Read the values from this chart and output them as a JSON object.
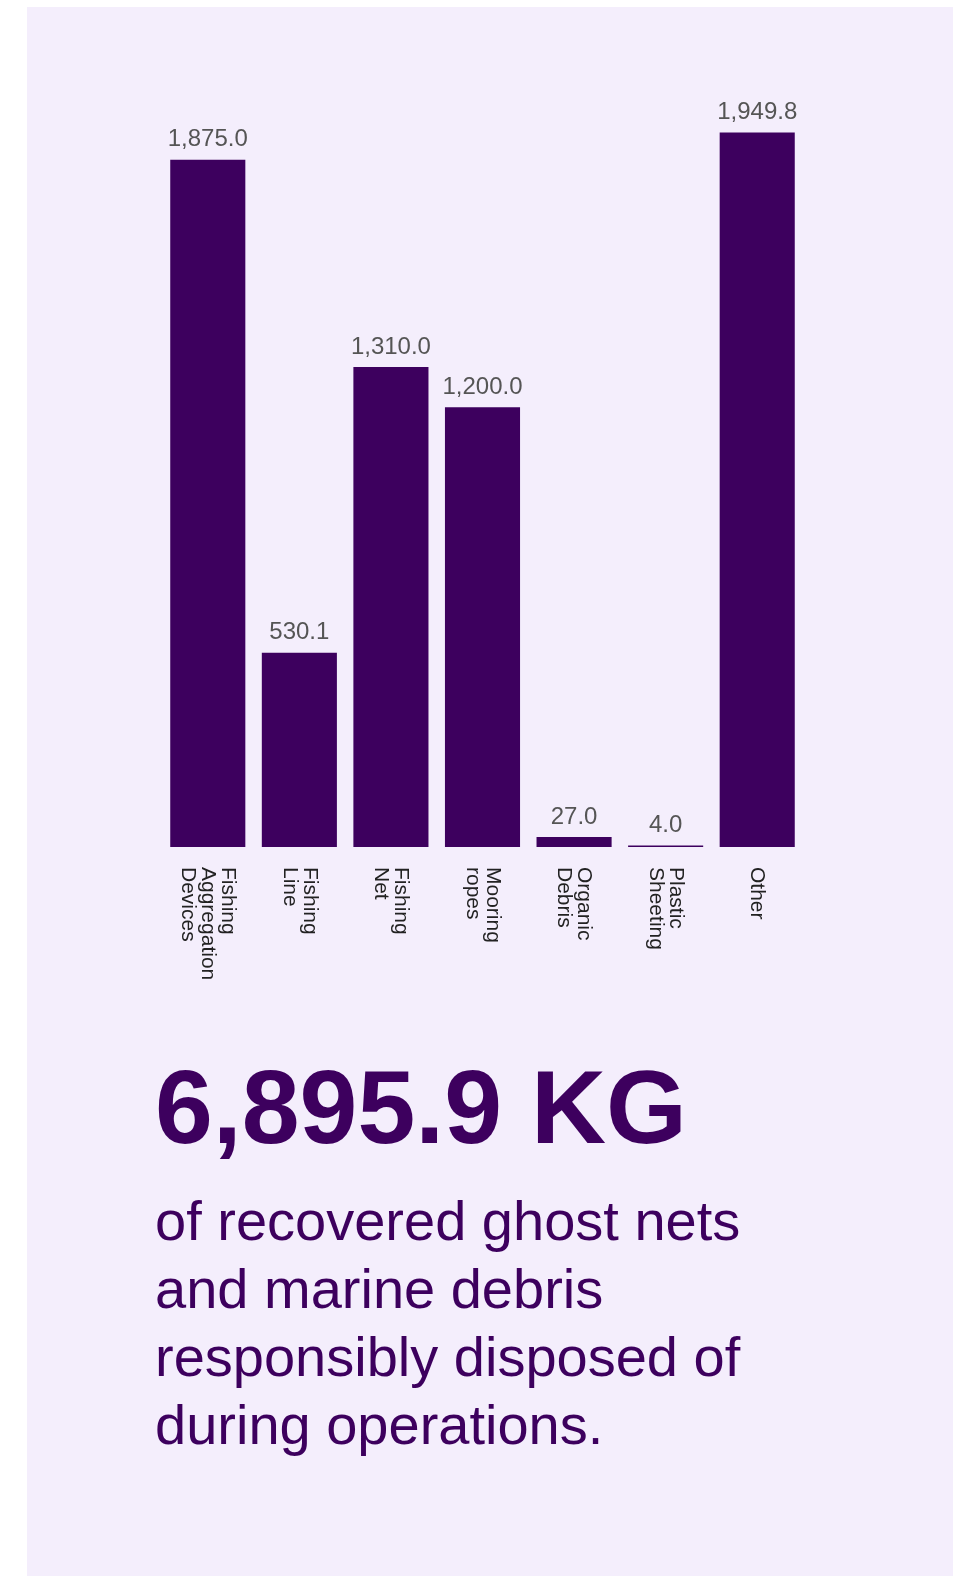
{
  "chart_data": {
    "type": "bar",
    "categories": [
      "Fishing Aggregation Devices",
      "Fishing Line",
      "Fishing Net",
      "Mooring ropes",
      "Organic Debris",
      "Plastic Sheeting",
      "Other"
    ],
    "values": [
      1875.0,
      530.1,
      1310.0,
      1200.0,
      27.0,
      4.0,
      1949.8
    ],
    "value_labels": [
      "1,875.0",
      "530.1",
      "1,310.0",
      "1,200.0",
      "27.0",
      "4.0",
      "1,949.8"
    ],
    "color": "#3d005e",
    "annotations": [
      "6,895.9 KG",
      "of recovered ghost nets and marine debris responsibly disposed of during operations."
    ]
  }
}
